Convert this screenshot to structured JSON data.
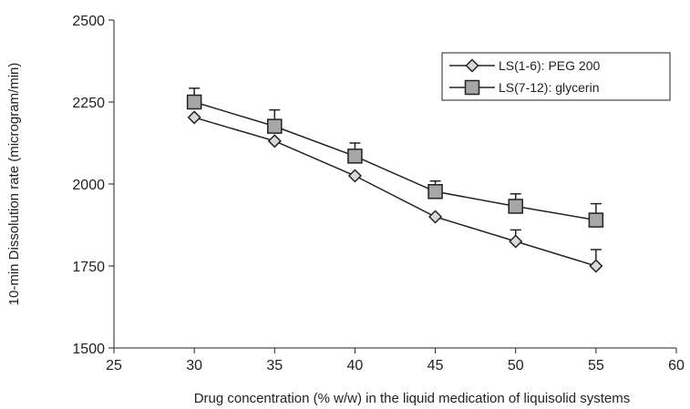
{
  "chart_data": {
    "type": "line",
    "title": "",
    "xlabel": "Drug concentration (% w/w) in the liquid medication of liquisolid systems",
    "ylabel": "10-min Dissolution rate (microgram/min)",
    "xlim": [
      25,
      60
    ],
    "ylim": [
      1500,
      2500
    ],
    "x_ticks": [
      "25",
      "30",
      "35",
      "40",
      "45",
      "50",
      "55",
      "60"
    ],
    "y_ticks": [
      "1500",
      "1750",
      "2000",
      "2250",
      "2500"
    ],
    "grid": false,
    "legend_position": "top-right",
    "x": [
      30,
      35,
      40,
      45,
      50,
      55
    ],
    "series": [
      {
        "name": "LS(1-6): PEG 200",
        "marker": "diamond",
        "values": [
          2203,
          2131,
          2025,
          1900,
          1825,
          1750
        ],
        "error": [
          0,
          0,
          0,
          0,
          35,
          50
        ]
      },
      {
        "name": "LS(7-12): glycerin",
        "marker": "square",
        "values": [
          2250,
          2176,
          2085,
          1977,
          1932,
          1890
        ],
        "error": [
          42,
          50,
          40,
          32,
          38,
          50
        ]
      }
    ]
  }
}
